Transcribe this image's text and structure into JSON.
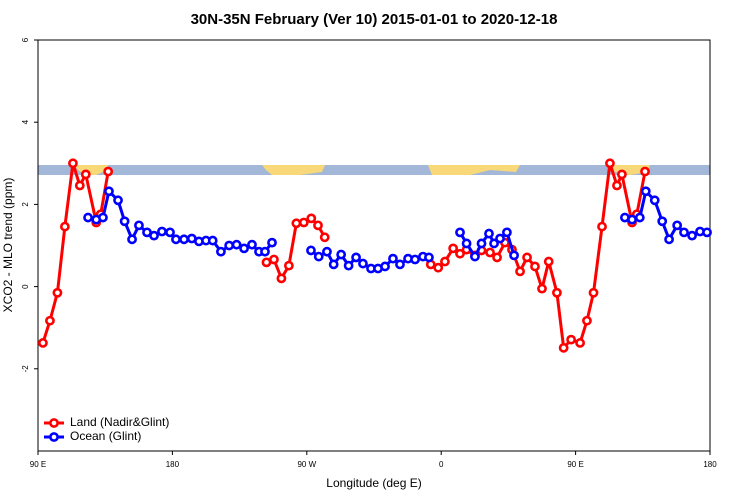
{
  "chart_data": {
    "type": "line",
    "title": "30N-35N February (Ver 10)   2015-01-01 to 2020-12-18",
    "xlabel": "Longitude (deg E)",
    "ylabel": "XCO2 - MLO trend (ppm)",
    "xlim": [
      90,
      540
    ],
    "ylim": [
      -4,
      6
    ],
    "xticks": [
      {
        "value": 90,
        "label": "90 E"
      },
      {
        "value": 180,
        "label": "180"
      },
      {
        "value": 270,
        "label": "90 W"
      },
      {
        "value": 360,
        "label": "0"
      },
      {
        "value": 450,
        "label": "90 E"
      },
      {
        "value": 540,
        "label": "180"
      }
    ],
    "yticks": [
      -2,
      0,
      2,
      4,
      6
    ],
    "legend": "bottom-left",
    "series": [
      {
        "name": "Land (Nadir&Glint)",
        "color": "#ff0000",
        "x": [
          93.3,
          98,
          103,
          108,
          113.4,
          118,
          122,
          129,
          132,
          137,
          null,
          243,
          248,
          253,
          258,
          263,
          268,
          273,
          277.5,
          282,
          null,
          353,
          358,
          362.5,
          368,
          372.6,
          377,
          382.6,
          387,
          392.7,
          397.4,
          402.7,
          407.4,
          412.8,
          417.5,
          422.8,
          427.5,
          432,
          437.5,
          442,
          447,
          453,
          457.6,
          462,
          467.7,
          473,
          477.7,
          481,
          487.8,
          491,
          496.5
        ],
        "values": [
          -1.37,
          -0.83,
          -0.15,
          1.46,
          3.0,
          2.46,
          2.73,
          1.56,
          1.76,
          2.8,
          null,
          0.59,
          0.66,
          0.2,
          0.51,
          1.54,
          1.56,
          1.66,
          1.49,
          1.2,
          null,
          0.54,
          0.46,
          0.61,
          0.93,
          0.8,
          0.9,
          0.76,
          0.88,
          0.83,
          0.71,
          1.07,
          0.9,
          0.37,
          0.71,
          0.49,
          -0.05,
          0.61,
          -0.15,
          -1.49,
          -1.29,
          -1.37,
          -0.83,
          -0.15,
          1.46,
          3.0,
          2.46,
          2.73,
          1.56,
          1.76,
          2.8
        ]
      },
      {
        "name": "Ocean (Glint)",
        "color": "#0000ff",
        "x": [
          123.5,
          129,
          133.5,
          137.5,
          143.6,
          148,
          153,
          157.6,
          163,
          167.7,
          173,
          178.4,
          182.4,
          187.8,
          193,
          197.8,
          202.5,
          207,
          212.5,
          218,
          223,
          228,
          233.3,
          238,
          242,
          246.7,
          null,
          272.8,
          278,
          283.5,
          288,
          293,
          298,
          303,
          307.6,
          313,
          317.7,
          322.4,
          327.7,
          332.4,
          337.8,
          342.5,
          347.8,
          351.8,
          null,
          372.6,
          377,
          382.6,
          387,
          392,
          395.4,
          399.4,
          404,
          408.8,
          null,
          483,
          487.8,
          493,
          497,
          503,
          508,
          512.6,
          518,
          522.6,
          528,
          533.3,
          538
        ],
        "values": [
          1.68,
          1.63,
          1.68,
          2.32,
          2.1,
          1.59,
          1.15,
          1.49,
          1.32,
          1.24,
          1.34,
          1.32,
          1.15,
          1.15,
          1.17,
          1.1,
          1.12,
          1.12,
          0.85,
          1.0,
          1.02,
          0.93,
          1.02,
          0.85,
          0.85,
          1.07,
          null,
          0.88,
          0.73,
          0.85,
          0.54,
          0.78,
          0.51,
          0.71,
          0.56,
          0.44,
          0.44,
          0.49,
          0.68,
          0.54,
          0.68,
          0.66,
          0.73,
          0.71,
          null,
          1.32,
          1.05,
          0.73,
          1.05,
          1.29,
          1.05,
          1.17,
          1.32,
          0.76,
          null,
          1.68,
          1.63,
          1.68,
          2.32,
          2.1,
          1.59,
          1.15,
          1.49,
          1.32,
          1.24,
          1.34,
          1.32
        ]
      }
    ]
  }
}
